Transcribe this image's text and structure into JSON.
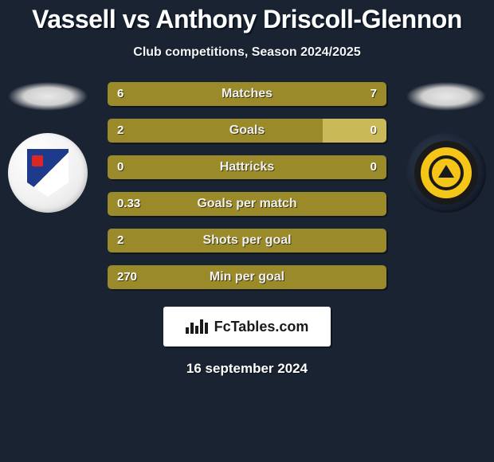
{
  "title": "Vassell vs Anthony Driscoll-Glennon",
  "subtitle": "Club competitions, Season 2024/2025",
  "date": "16 september 2024",
  "brand": "FcTables.com",
  "colors": {
    "background": "#1a2332",
    "bar_primary": "#9a8a2a",
    "bar_secondary": "#c9b957",
    "text": "#ffffff"
  },
  "player_left": {
    "name": "Vassell",
    "club": "Barrow AFC"
  },
  "player_right": {
    "name": "Anthony Driscoll-Glennon",
    "club": "Newport County AFC"
  },
  "stats": [
    {
      "label": "Matches",
      "left_val": "6",
      "right_val": "7",
      "left_pct": 46,
      "right_pct": 54,
      "left_color": "#9a8a2a",
      "right_color": "#9a8a2a"
    },
    {
      "label": "Goals",
      "left_val": "2",
      "right_val": "0",
      "left_pct": 77,
      "right_pct": 23,
      "left_color": "#9a8a2a",
      "right_color": "#c9b957"
    },
    {
      "label": "Hattricks",
      "left_val": "0",
      "right_val": "0",
      "left_pct": 50,
      "right_pct": 50,
      "left_color": "#9a8a2a",
      "right_color": "#9a8a2a"
    },
    {
      "label": "Goals per match",
      "left_val": "0.33",
      "right_val": "",
      "left_pct": 100,
      "right_pct": 0,
      "left_color": "#9a8a2a",
      "right_color": "#c9b957"
    },
    {
      "label": "Shots per goal",
      "left_val": "2",
      "right_val": "",
      "left_pct": 100,
      "right_pct": 0,
      "left_color": "#9a8a2a",
      "right_color": "#c9b957"
    },
    {
      "label": "Min per goal",
      "left_val": "270",
      "right_val": "",
      "left_pct": 100,
      "right_pct": 0,
      "left_color": "#9a8a2a",
      "right_color": "#c9b957"
    }
  ]
}
